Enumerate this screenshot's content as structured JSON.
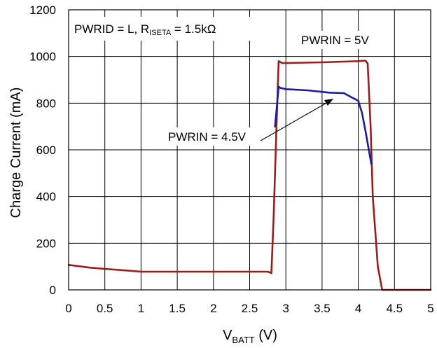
{
  "chart_data": {
    "type": "line",
    "annotation_main": {
      "prefix": "PWRID = L, R",
      "sub": "ISETA",
      "suffix": " = 1.5kΩ"
    },
    "xlabel": {
      "main": "V",
      "sub": "BATT",
      "unit": " (V)"
    },
    "ylabel": "Charge Current (mA)",
    "xlim": [
      0,
      5
    ],
    "ylim": [
      0,
      1200
    ],
    "x_ticks": [
      "0",
      "0.5",
      "1",
      "1.5",
      "2",
      "2.5",
      "3",
      "3.5",
      "4",
      "4.5",
      "5"
    ],
    "y_ticks": [
      "0",
      "200",
      "400",
      "600",
      "800",
      "1000",
      "1200"
    ],
    "grid": true,
    "series": [
      {
        "name": "PWRIN = 5V",
        "color": "#9b1c1c",
        "x": [
          0,
          0.3,
          0.5,
          0.8,
          1.0,
          1.5,
          2.0,
          2.5,
          2.75,
          2.8,
          2.83,
          2.87,
          2.9,
          2.95,
          3.0,
          3.5,
          4.0,
          4.1,
          4.13,
          4.17,
          4.2,
          4.27,
          4.33,
          4.5,
          5.0
        ],
        "values": [
          107,
          95,
          90,
          83,
          78,
          78,
          78,
          78,
          78,
          72,
          300,
          700,
          980,
          972,
          972,
          975,
          980,
          982,
          970,
          700,
          400,
          100,
          0,
          0,
          0
        ]
      },
      {
        "name": "PWRIN = 4.5V",
        "color": "#1c1ca0",
        "x": [
          2.85,
          2.9,
          2.93,
          3.0,
          3.3,
          3.6,
          3.8,
          4.0,
          4.05,
          4.1,
          4.18
        ],
        "values": [
          700,
          870,
          865,
          860,
          855,
          845,
          843,
          810,
          760,
          680,
          540
        ]
      }
    ]
  }
}
